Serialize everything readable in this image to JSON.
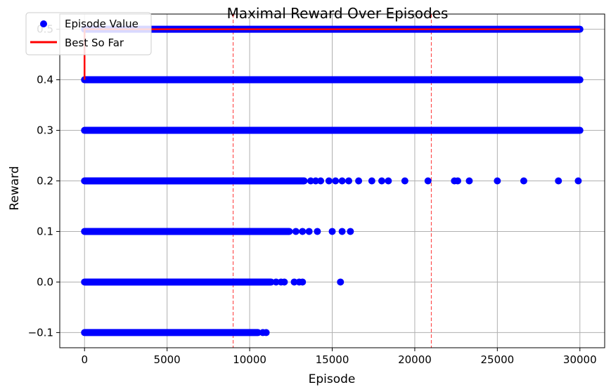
{
  "chart_data": {
    "type": "scatter",
    "title": "Maximal Reward Over Episodes",
    "xlabel": "Episode",
    "ylabel": "Reward",
    "xlim": [
      -1500,
      31500
    ],
    "ylim": [
      -0.13,
      0.53
    ],
    "xticks": [
      0,
      5000,
      10000,
      15000,
      20000,
      25000,
      30000
    ],
    "xtick_labels": [
      "0",
      "5000",
      "10000",
      "15000",
      "20000",
      "25000",
      "30000"
    ],
    "yticks": [
      -0.1,
      0.0,
      0.1,
      0.2,
      0.3,
      0.4,
      0.5
    ],
    "ytick_labels": [
      "−0.1",
      "0.0",
      "0.1",
      "0.2",
      "0.3",
      "0.4",
      "0.5"
    ],
    "grid": true,
    "legend_position": "top-left",
    "series": [
      {
        "name": "Episode Value",
        "kind": "scatter",
        "color": "#0000ff",
        "rows": [
          {
            "y": 0.5,
            "dense": [
              [
                0,
                30000
              ]
            ],
            "points": []
          },
          {
            "y": 0.4,
            "dense": [
              [
                0,
                30000
              ]
            ],
            "points": []
          },
          {
            "y": 0.3,
            "dense": [
              [
                0,
                30000
              ]
            ],
            "points": []
          },
          {
            "y": 0.2,
            "dense": [
              [
                0,
                13300
              ]
            ],
            "points": [
              13700,
              14000,
              14300,
              14800,
              15200,
              15600,
              16000,
              16600,
              17400,
              18000,
              18400,
              19400,
              20800,
              22400,
              22600,
              23300,
              25000,
              26600,
              28700,
              29900
            ]
          },
          {
            "y": 0.1,
            "dense": [
              [
                0,
                12400
              ]
            ],
            "points": [
              12800,
              13200,
              13600,
              14100,
              15000,
              15600,
              16100
            ]
          },
          {
            "y": 0.0,
            "dense": [
              [
                0,
                11300
              ]
            ],
            "points": [
              11600,
              11900,
              12100,
              12700,
              13000,
              13200,
              15500
            ]
          },
          {
            "y": -0.1,
            "dense": [
              [
                0,
                10500
              ]
            ],
            "points": [
              10800,
              11000
            ]
          }
        ]
      },
      {
        "name": "Best So Far",
        "kind": "line",
        "color": "#ff0000",
        "x": [
          0,
          0,
          30000
        ],
        "y": [
          0.4,
          0.5,
          0.5
        ]
      }
    ],
    "vlines": [
      {
        "x": 9000,
        "color": "#ff0000",
        "style": "dashed"
      },
      {
        "x": 21000,
        "color": "#ff0000",
        "style": "dashed"
      }
    ]
  }
}
